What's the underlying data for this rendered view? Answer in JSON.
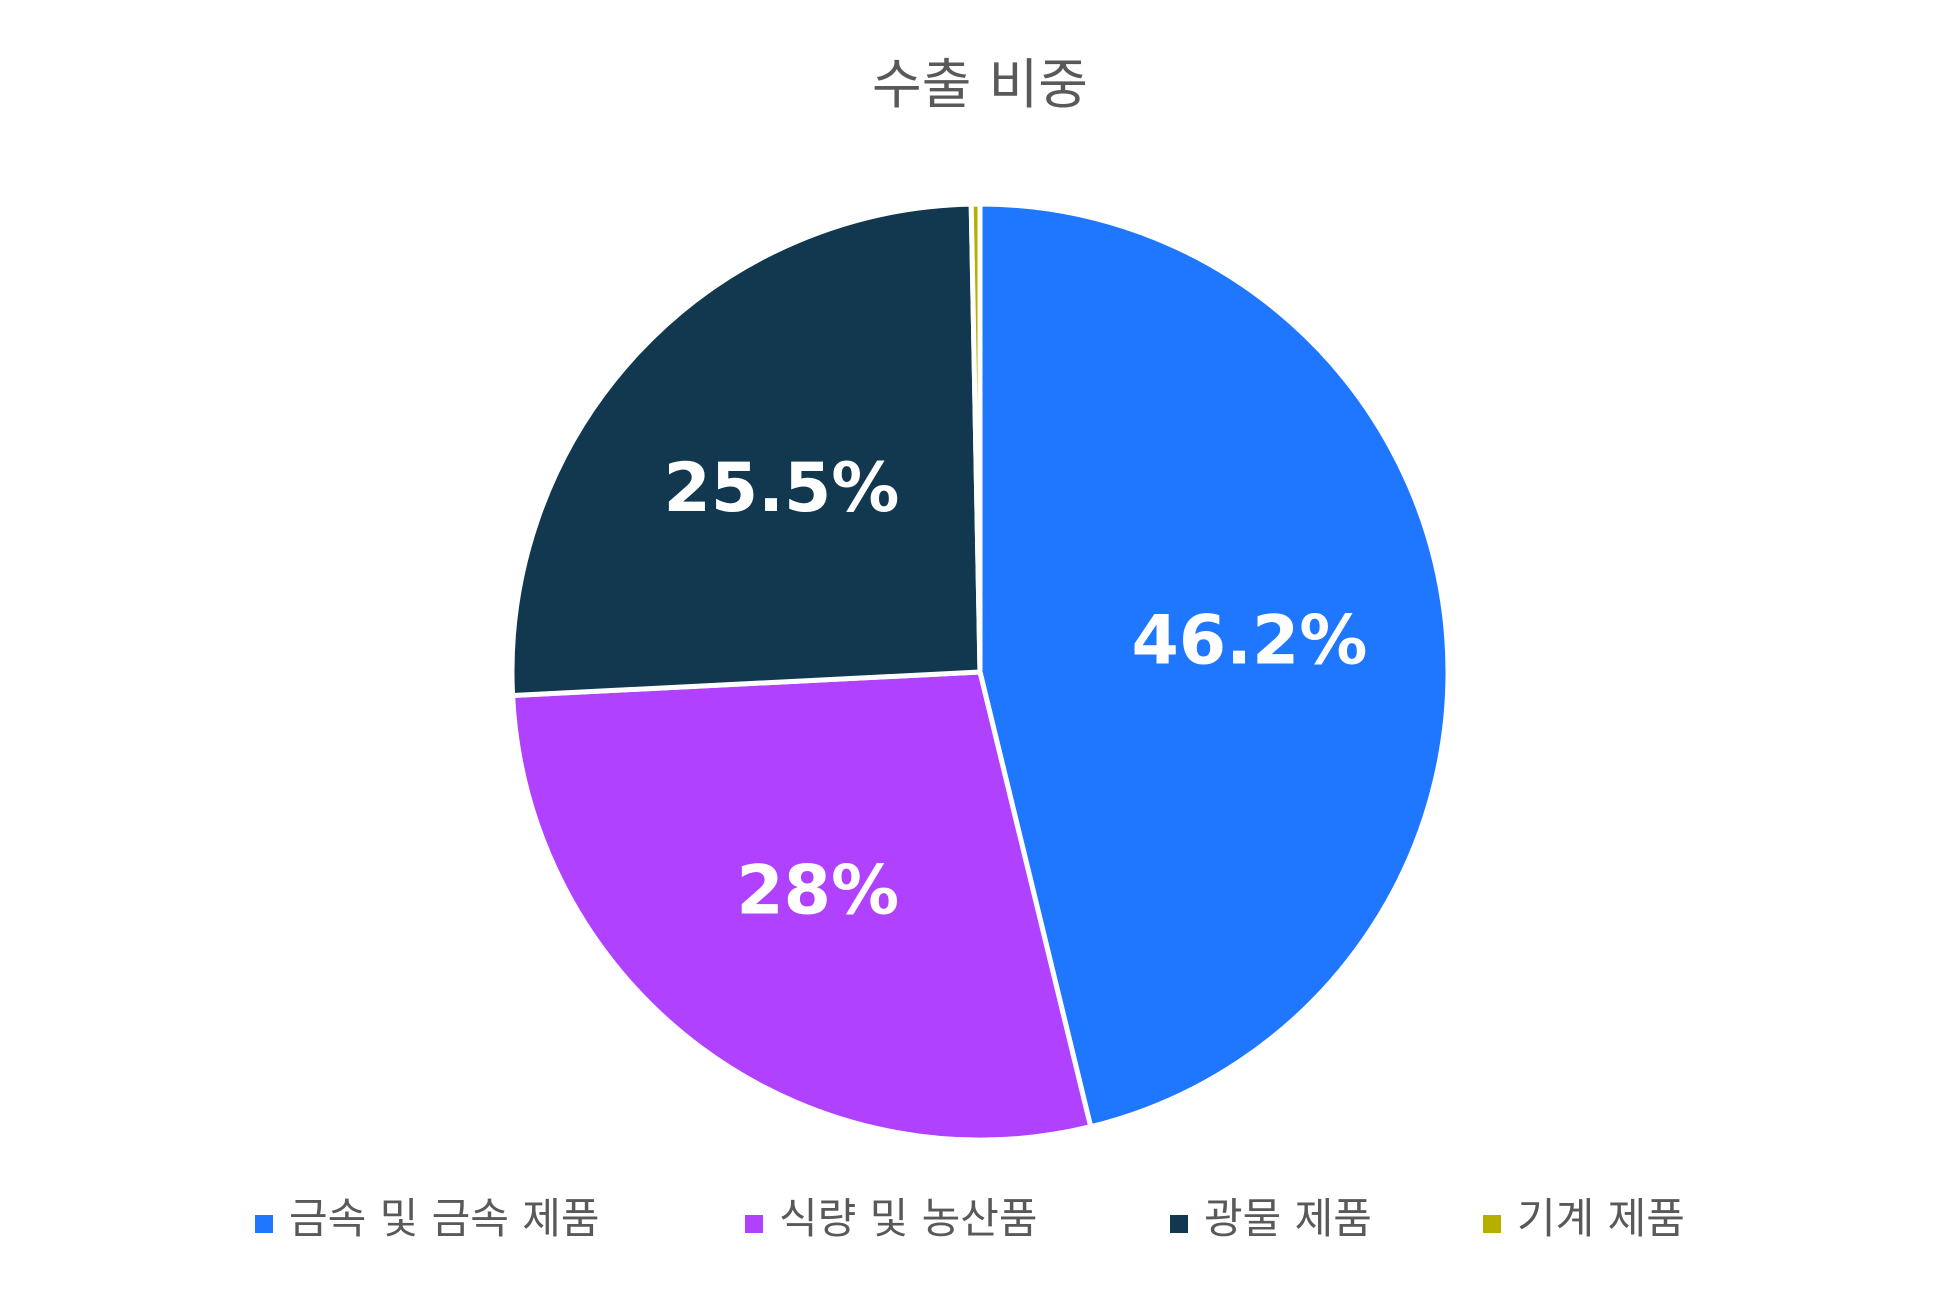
{
  "chart_data": {
    "type": "pie",
    "title": "수출 비중",
    "categories": [
      "금속 및 금속 제품",
      "식량 및 농산품",
      "광물 제품",
      "기계 제품"
    ],
    "values": [
      46.2,
      28,
      25.5,
      0.3
    ],
    "labels": [
      "46.2%",
      "28%",
      "25.5%",
      ""
    ],
    "colors": [
      "#1f77ff",
      "#b041ff",
      "#11384e",
      "#b5b000"
    ],
    "legend_position": "bottom",
    "start_angle": "top (12 o'clock), clockwise"
  }
}
